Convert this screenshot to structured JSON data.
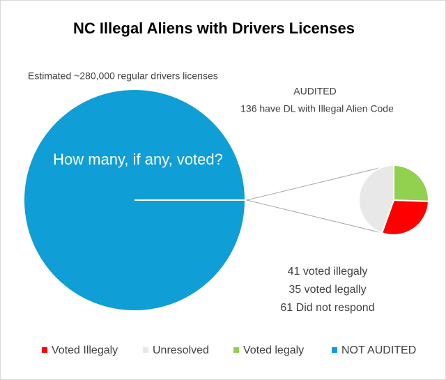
{
  "chart_data": {
    "type": "pie-of-pie",
    "title": "NC Illegal Aliens with Drivers Licenses",
    "categories": [
      "Voted Illegaly",
      "Unresolved",
      "Voted legaly",
      "NOT AUDITED"
    ],
    "values": [
      41,
      61,
      35,
      279864
    ],
    "colors": [
      "#ff0000",
      "#e8e8e8",
      "#92d050",
      "#0f9ed5"
    ],
    "annotations": [
      "Estimated ~280,000  regular drivers licenses",
      "AUDITED",
      "136  have DL with Illegal Alien Code",
      "How many, if any, voted?",
      "41 voted illegaly",
      "35 voted legally",
      "61 Did not respond"
    ],
    "legend": "bottom"
  }
}
